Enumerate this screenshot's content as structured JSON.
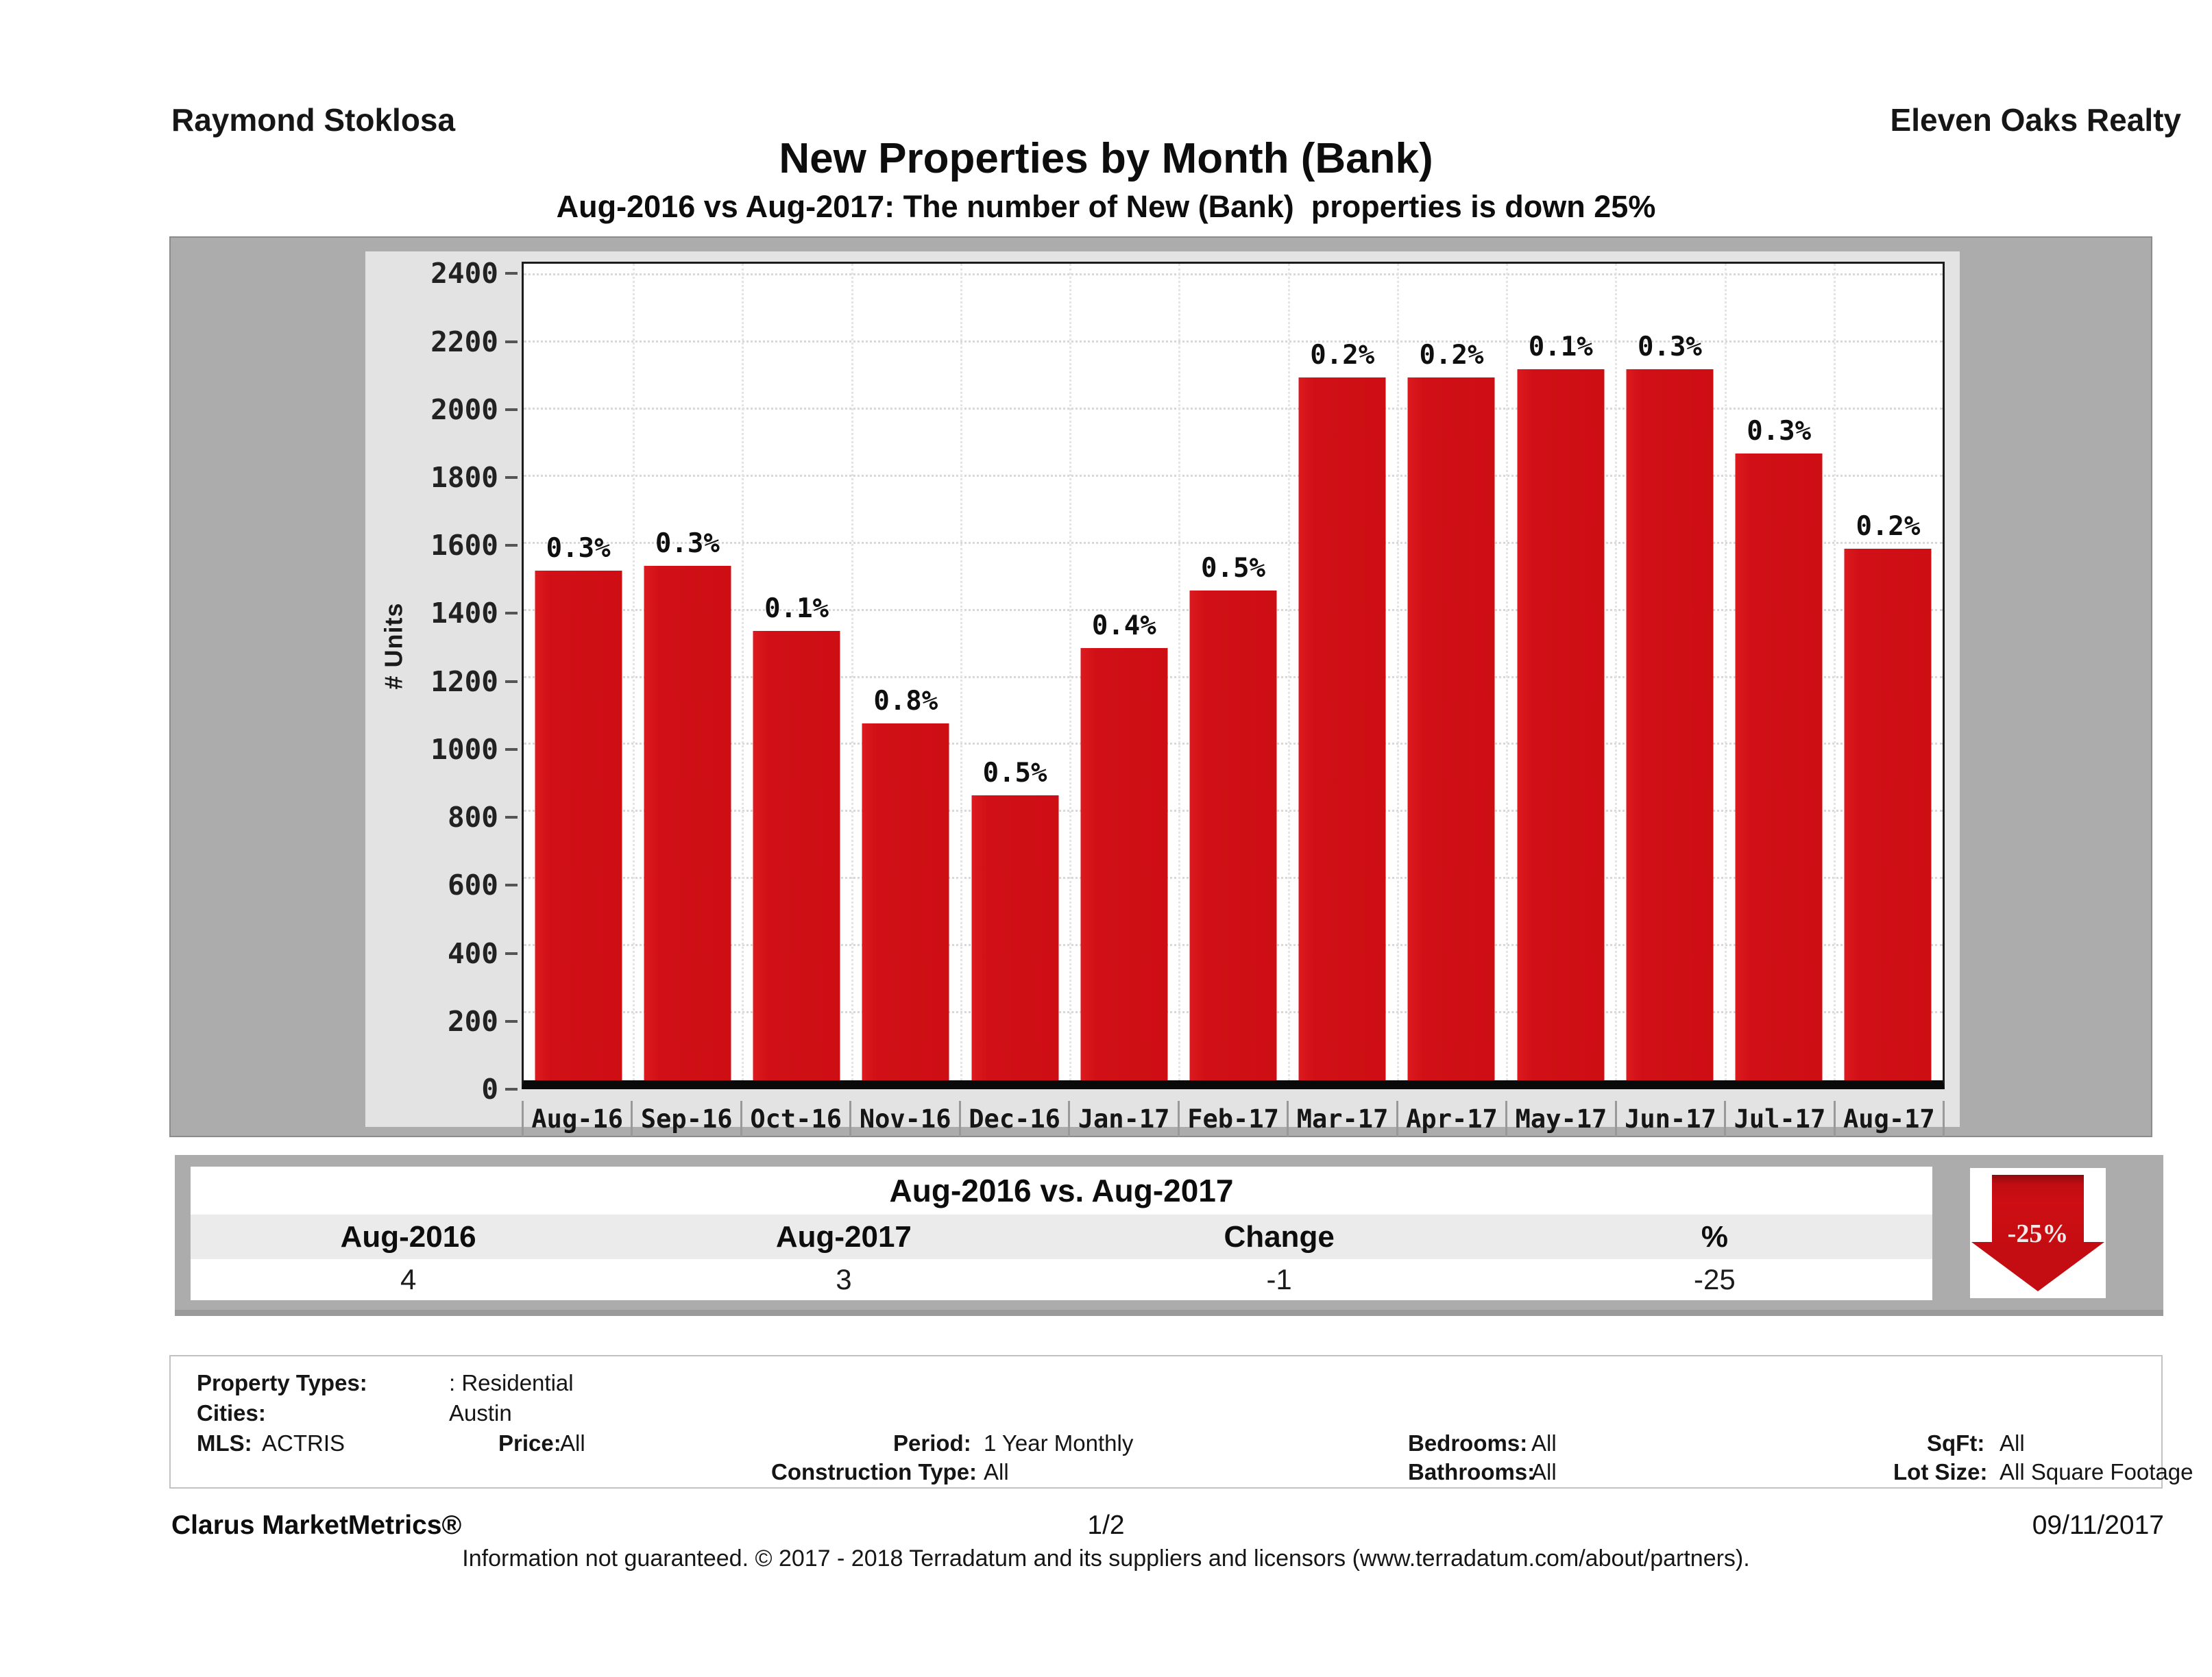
{
  "header": {
    "agent": "Raymond Stoklosa",
    "company": "Eleven Oaks Realty"
  },
  "title": "New Properties by Month (Bank)",
  "subtitle": "Aug-2016 vs Aug-2017: The number of New (Bank)  properties is down 25%",
  "chart_data": {
    "type": "bar",
    "title": "New Properties by Month (Bank)",
    "xlabel": "",
    "ylabel": "# Units",
    "categories": [
      "Aug-16",
      "Sep-16",
      "Oct-16",
      "Nov-16",
      "Dec-16",
      "Jan-17",
      "Feb-17",
      "Mar-17",
      "Apr-17",
      "May-17",
      "Jun-17",
      "Jul-17",
      "Aug-17"
    ],
    "values": [
      1520,
      1535,
      1340,
      1065,
      850,
      1290,
      1460,
      2095,
      2095,
      2120,
      2120,
      1870,
      1585
    ],
    "bar_labels": [
      "0.3%",
      "0.3%",
      "0.1%",
      "0.8%",
      "0.5%",
      "0.4%",
      "0.5%",
      "0.2%",
      "0.2%",
      "0.1%",
      "0.3%",
      "0.3%",
      "0.2%"
    ],
    "yticks": [
      0,
      200,
      400,
      600,
      800,
      1000,
      1200,
      1400,
      1600,
      1800,
      2000,
      2200,
      2400
    ],
    "ylim": [
      0,
      2435
    ],
    "grid": "dotted horizontal and vertical",
    "legend": "none",
    "bar_color": "#cd0e13"
  },
  "summary": {
    "title": "Aug-2016 vs. Aug-2017",
    "columns": [
      "Aug-2016",
      "Aug-2017",
      "Change",
      "%"
    ],
    "values": [
      "4",
      "3",
      "-1",
      "-25"
    ],
    "arrow_label": "-25%",
    "arrow_color": "#c30d12"
  },
  "criteria": {
    "property_types_label": "Property Types:",
    "property_types_value": ": Residential",
    "cities_label": "Cities:",
    "cities_value": "Austin",
    "mls_label": "MLS:",
    "mls_value": "ACTRIS",
    "price_label": "Price:",
    "price_value": "All",
    "period_label": "Period:",
    "period_value": "1 Year Monthly",
    "construction_label": "Construction Type:",
    "construction_value": "All",
    "bedrooms_label": "Bedrooms:",
    "bedrooms_value": "All",
    "bathrooms_label": "Bathrooms:",
    "bathrooms_value": "All",
    "sqft_label": "SqFt:",
    "sqft_value": "All",
    "lot_label": "Lot Size:",
    "lot_value": "All Square Footage"
  },
  "footer": {
    "brand": "Clarus MarketMetrics®",
    "page": "1/2",
    "date": "09/11/2017",
    "disclaimer": "Information not guaranteed. © 2017 - 2018 Terradatum and its suppliers and licensors (www.terradatum.com/about/partners)."
  }
}
